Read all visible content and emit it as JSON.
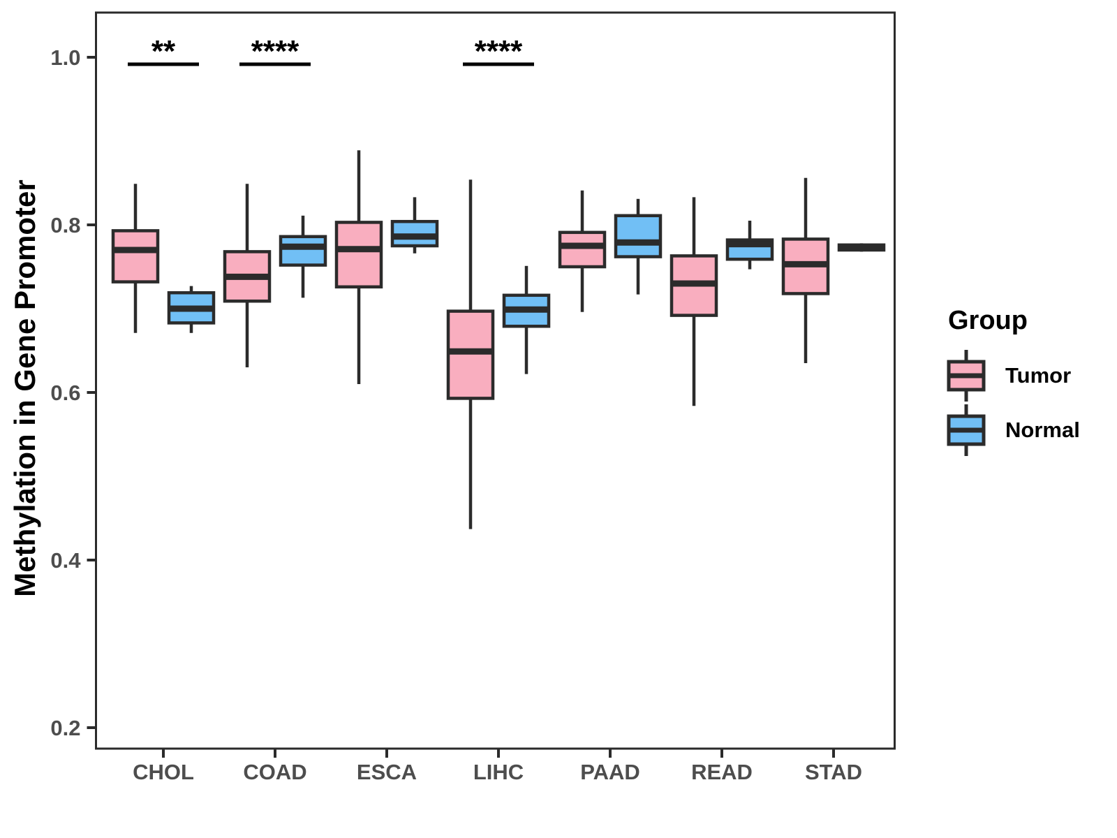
{
  "chart_data": {
    "type": "boxplot",
    "title": "",
    "xlabel": "",
    "ylabel": "Methylation in Gene Promoter",
    "categories": [
      "CHOL",
      "COAD",
      "ESCA",
      "LIHC",
      "PAAD",
      "READ",
      "STAD"
    ],
    "y_ticks": [
      {
        "value": 1.0,
        "label": "1.0"
      },
      {
        "value": 0.8,
        "label": "0.8"
      },
      {
        "value": 0.6,
        "label": "0.6"
      },
      {
        "value": 0.4,
        "label": "0.4"
      },
      {
        "value": 0.2,
        "label": "0.2"
      }
    ],
    "ylim": [
      0.175,
      1.053
    ],
    "grid": false,
    "legend_position": "right",
    "series": [
      {
        "name": "Tumor",
        "color": "#F9AEBF",
        "boxes": [
          {
            "category": "CHOL",
            "min": 0.671,
            "q1": 0.732,
            "median": 0.77,
            "q3": 0.793,
            "max": 0.849
          },
          {
            "category": "COAD",
            "min": 0.63,
            "q1": 0.709,
            "median": 0.738,
            "q3": 0.768,
            "max": 0.849
          },
          {
            "category": "ESCA",
            "min": 0.61,
            "q1": 0.726,
            "median": 0.771,
            "q3": 0.803,
            "max": 0.889
          },
          {
            "category": "LIHC",
            "min": 0.437,
            "q1": 0.593,
            "median": 0.649,
            "q3": 0.697,
            "max": 0.854
          },
          {
            "category": "PAAD",
            "min": 0.696,
            "q1": 0.75,
            "median": 0.775,
            "q3": 0.791,
            "max": 0.841
          },
          {
            "category": "READ",
            "min": 0.584,
            "q1": 0.692,
            "median": 0.73,
            "q3": 0.763,
            "max": 0.833
          },
          {
            "category": "STAD",
            "min": 0.635,
            "q1": 0.718,
            "median": 0.753,
            "q3": 0.783,
            "max": 0.856
          }
        ]
      },
      {
        "name": "Normal",
        "color": "#71BFF5",
        "boxes": [
          {
            "category": "CHOL",
            "min": 0.671,
            "q1": 0.683,
            "median": 0.7,
            "q3": 0.719,
            "max": 0.727
          },
          {
            "category": "COAD",
            "min": 0.713,
            "q1": 0.752,
            "median": 0.774,
            "q3": 0.786,
            "max": 0.811
          },
          {
            "category": "ESCA",
            "min": 0.766,
            "q1": 0.775,
            "median": 0.786,
            "q3": 0.804,
            "max": 0.833
          },
          {
            "category": "LIHC",
            "min": 0.622,
            "q1": 0.679,
            "median": 0.699,
            "q3": 0.716,
            "max": 0.751
          },
          {
            "category": "PAAD",
            "min": 0.717,
            "q1": 0.762,
            "median": 0.779,
            "q3": 0.811,
            "max": 0.831
          },
          {
            "category": "READ",
            "min": 0.747,
            "q1": 0.759,
            "median": 0.777,
            "q3": 0.782,
            "max": 0.805
          },
          {
            "category": "STAD",
            "min": 0.768,
            "q1": 0.77,
            "median": 0.773,
            "q3": 0.776,
            "max": 0.778
          }
        ]
      }
    ],
    "annotations": [
      {
        "category": "CHOL",
        "label": "**"
      },
      {
        "category": "COAD",
        "label": "****"
      },
      {
        "category": "LIHC",
        "label": "****"
      }
    ]
  },
  "legend": {
    "title": "Group",
    "items": [
      {
        "label": "Tumor",
        "color": "#F9AEBF"
      },
      {
        "label": "Normal",
        "color": "#71BFF5"
      }
    ]
  },
  "colors": {
    "box_stroke": "#2B2B2B",
    "axis": "#2B2B2B",
    "tick_label": "#4D4D4D"
  }
}
